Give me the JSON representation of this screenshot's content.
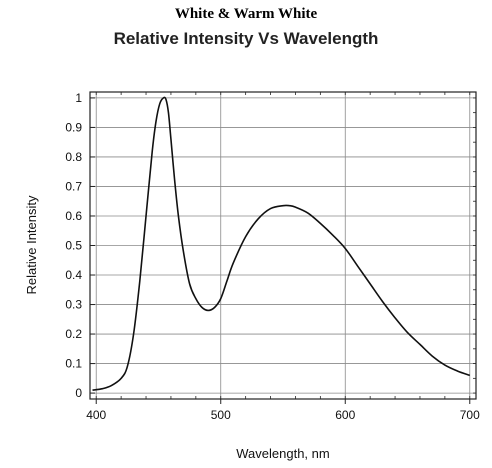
{
  "page": {
    "title": "White & Warm White"
  },
  "chart_data": {
    "type": "line",
    "title": "Relative Intensity Vs Wavelength",
    "xlabel": "Wavelength, nm",
    "ylabel": "Relative Intensity",
    "xlim": [
      395,
      705
    ],
    "ylim": [
      -0.02,
      1.02
    ],
    "x_ticks": [
      400,
      500,
      600,
      700
    ],
    "y_ticks": [
      0,
      0.1,
      0.2,
      0.3,
      0.4,
      0.5,
      0.6,
      0.7,
      0.8,
      0.9,
      1
    ],
    "y_tick_labels": [
      "0",
      "0.1",
      "0.2",
      "0.3",
      "0.4",
      "0.5",
      "0.6",
      "0.7",
      "0.8",
      "0.9",
      "1"
    ],
    "x_tick_labels": [
      "400",
      "500",
      "600",
      "700"
    ],
    "grid": true,
    "series": [
      {
        "x": [
          397,
          405,
          412,
          420,
          425,
          430,
          435,
          440,
          445,
          448,
          451,
          454,
          456,
          458,
          460,
          463,
          466,
          470,
          475,
          480,
          485,
          490,
          495,
          500,
          505,
          510,
          520,
          530,
          540,
          550,
          555,
          560,
          570,
          580,
          590,
          600,
          610,
          620,
          630,
          640,
          650,
          660,
          670,
          680,
          690,
          700
        ],
        "y": [
          0.01,
          0.015,
          0.025,
          0.05,
          0.09,
          0.2,
          0.38,
          0.6,
          0.82,
          0.92,
          0.98,
          1.0,
          0.995,
          0.95,
          0.86,
          0.72,
          0.6,
          0.48,
          0.37,
          0.32,
          0.29,
          0.28,
          0.29,
          0.32,
          0.38,
          0.44,
          0.53,
          0.59,
          0.625,
          0.635,
          0.635,
          0.63,
          0.61,
          0.575,
          0.535,
          0.49,
          0.43,
          0.37,
          0.31,
          0.255,
          0.205,
          0.165,
          0.125,
          0.095,
          0.075,
          0.06
        ]
      }
    ]
  }
}
